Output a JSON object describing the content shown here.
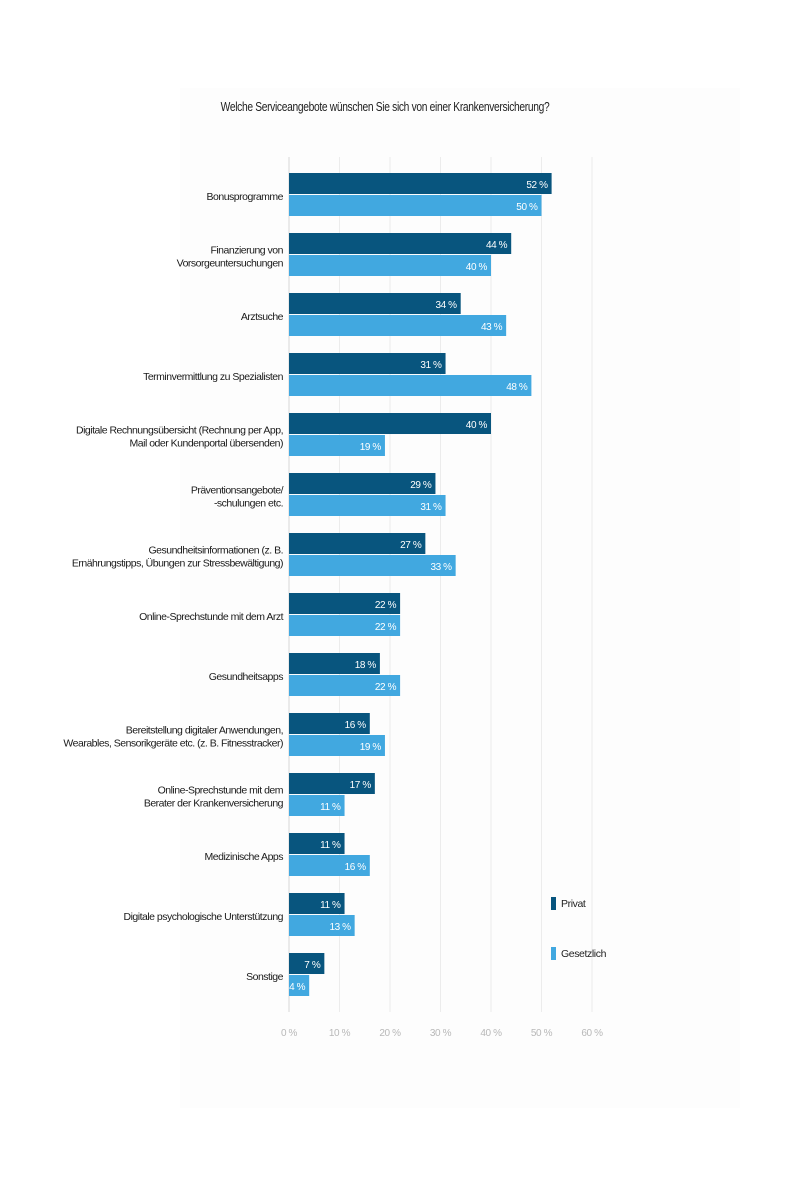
{
  "chart_data": {
    "type": "bar",
    "orientation": "horizontal",
    "title": "Welche Serviceangebote wünschen Sie sich von einer Krankenversicherung?",
    "categories": [
      [
        "Bonusprogramme"
      ],
      [
        "Finanzierung von",
        "Vorsorgeuntersuchungen"
      ],
      [
        "Arztsuche"
      ],
      [
        "Terminvermittlung zu Spezialisten"
      ],
      [
        "Digitale Rechnungsübersicht (Rechnung per App,",
        "Mail oder Kundenportal übersenden)"
      ],
      [
        "Präventionsangebote/",
        "-schulungen etc."
      ],
      [
        "Gesundheitsinformationen (z. B.",
        "Ernährungstipps, Übungen zur Stressbewältigung)"
      ],
      [
        "Online-Sprechstunde mit dem Arzt"
      ],
      [
        "Gesundheitsapps"
      ],
      [
        "Bereitstellung digitaler Anwendungen,",
        "Wearables, Sensorikgeräte etc. (z. B. Fitnesstracker)"
      ],
      [
        "Online-Sprechstunde mit dem",
        "Berater der Krankenversicherung"
      ],
      [
        "Medizinische Apps"
      ],
      [
        "Digitale psychologische Unterstützung"
      ],
      [
        "Sonstige"
      ]
    ],
    "series": [
      {
        "name": "Privat",
        "color": "#08557e",
        "values": [
          52,
          44,
          34,
          31,
          40,
          29,
          27,
          22,
          18,
          16,
          17,
          11,
          11,
          7
        ]
      },
      {
        "name": "Gesetzlich",
        "color": "#41a8e0",
        "values": [
          50,
          40,
          43,
          48,
          19,
          31,
          33,
          22,
          22,
          19,
          11,
          16,
          13,
          4
        ]
      }
    ],
    "value_suffix": " %",
    "xlim": [
      0,
      60
    ],
    "xticks": [
      "0 %",
      "10 %",
      "20 %",
      "30 %",
      "40 %",
      "50 %",
      "60 %"
    ],
    "grid": true,
    "legend": "right"
  }
}
